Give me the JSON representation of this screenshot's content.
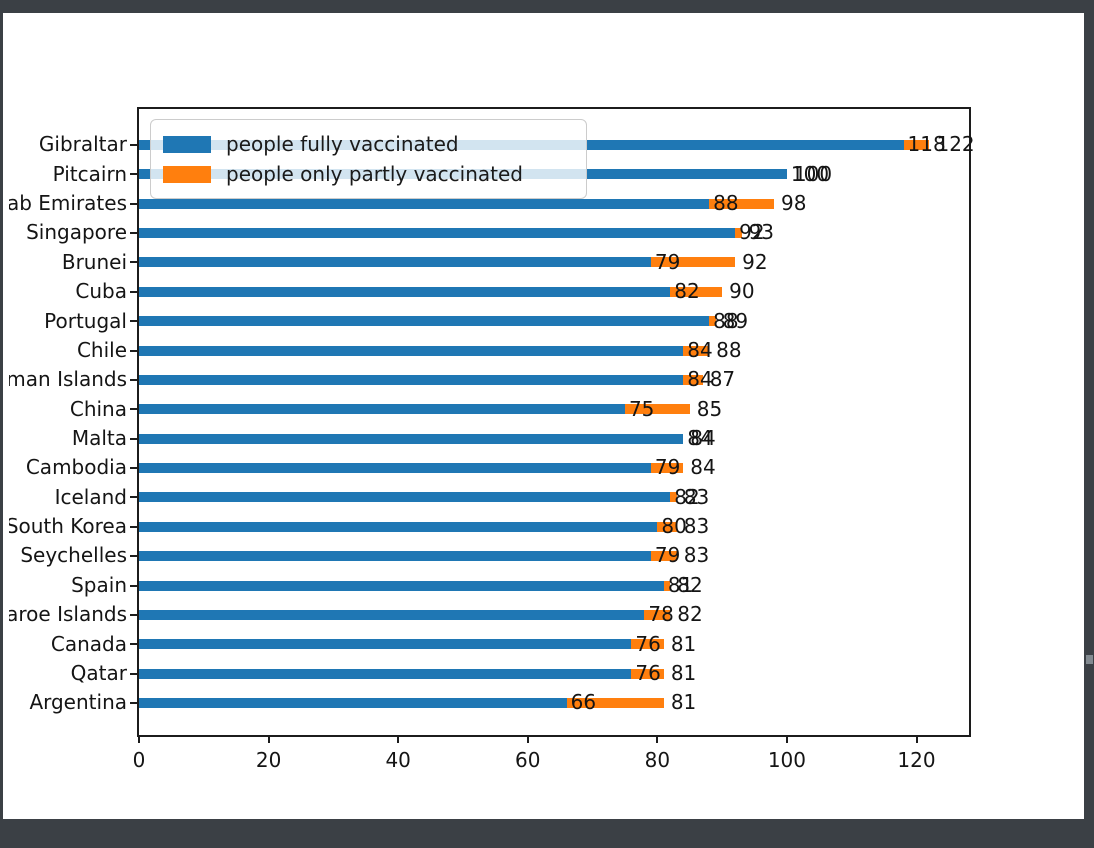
{
  "window": {
    "background_color": "#3b4045",
    "figure_background": "#ffffff",
    "scrollbar_thumb_color": "#828a90"
  },
  "chart_data": {
    "type": "bar",
    "orientation": "horizontal",
    "stacked": true,
    "title": "",
    "xlabel": "",
    "ylabel": "",
    "xlim": [
      0,
      128.1
    ],
    "x_ticks": [
      "0",
      "20",
      "40",
      "60",
      "80",
      "100",
      "120"
    ],
    "grid": false,
    "legend": {
      "position": "upper left",
      "entries": [
        {
          "label": "people fully vaccinated",
          "color": "#1f77b4"
        },
        {
          "label": "people only partly vaccinated",
          "color": "#ff7f0e"
        }
      ]
    },
    "categories": [
      "Gibraltar",
      "Pitcairn",
      "United Arab Emirates",
      "Singapore",
      "Brunei",
      "Cuba",
      "Portugal",
      "Chile",
      "Cayman Islands",
      "China",
      "Malta",
      "Cambodia",
      "Iceland",
      "South Korea",
      "Seychelles",
      "Spain",
      "Faroe Islands",
      "Canada",
      "Qatar",
      "Argentina"
    ],
    "series": [
      {
        "name": "people fully vaccinated",
        "color": "#1f77b4",
        "values": [
          118,
          100,
          88,
          92,
          79,
          82,
          88,
          84,
          84,
          75,
          84,
          79,
          82,
          80,
          79,
          81,
          78,
          76,
          76,
          66
        ]
      },
      {
        "name": "people only partly vaccinated",
        "color": "#ff7f0e",
        "values": [
          4,
          0,
          10,
          1,
          13,
          8,
          1,
          4,
          3,
          10,
          0,
          5,
          1,
          3,
          4,
          1,
          4,
          5,
          5,
          15
        ]
      }
    ],
    "bar_labels": {
      "fully": [
        "118",
        "100",
        "88",
        "92",
        "79",
        "82",
        "88",
        "84",
        "84",
        "75",
        "84",
        "79",
        "82",
        "80",
        "79",
        "81",
        "78",
        "76",
        "76",
        "66"
      ],
      "total": [
        "122",
        "100",
        "98",
        "93",
        "92",
        "90",
        "89",
        "88",
        "87",
        "85",
        "84",
        "84",
        "83",
        "83",
        "83",
        "82",
        "82",
        "81",
        "81",
        "81"
      ]
    }
  }
}
